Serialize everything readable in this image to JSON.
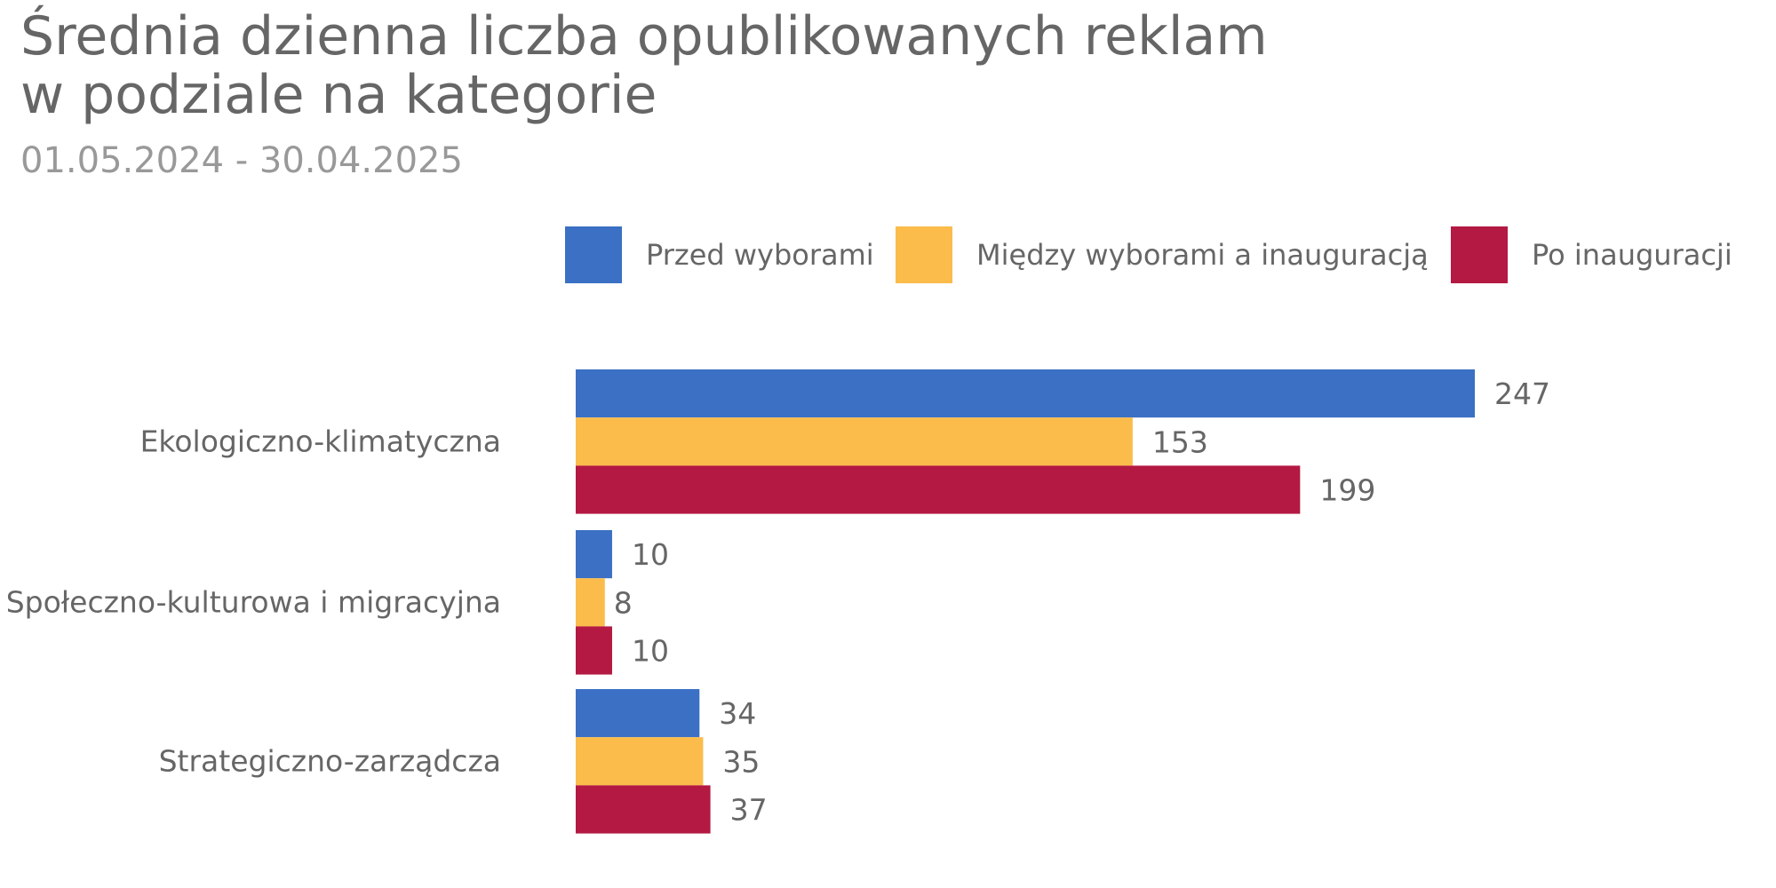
{
  "chart_data": {
    "type": "bar",
    "orientation": "horizontal",
    "title_lines": [
      "Średnia dzienna liczba opublikowanych reklam",
      "w podziale na kategorie"
    ],
    "subtitle": "01.05.2024 - 30.04.2025",
    "categories": [
      "Ekologiczno-klimatyczna",
      "Społeczno-kulturowa i migracyjna",
      "Strategiczno-zarządcza"
    ],
    "series": [
      {
        "name": "Przed wyborami",
        "color": "#3b70c4",
        "values": [
          247,
          10,
          34
        ]
      },
      {
        "name": "Między wyborami a inauguracją",
        "color": "#fbbc4b",
        "values": [
          153,
          8,
          35
        ]
      },
      {
        "name": "Po inauguracji",
        "color": "#b31942",
        "values": [
          199,
          10,
          37
        ]
      }
    ],
    "xlabel": "",
    "ylabel": "",
    "xlim": [
      0,
      247
    ],
    "grid": false,
    "legend_position": "top"
  }
}
